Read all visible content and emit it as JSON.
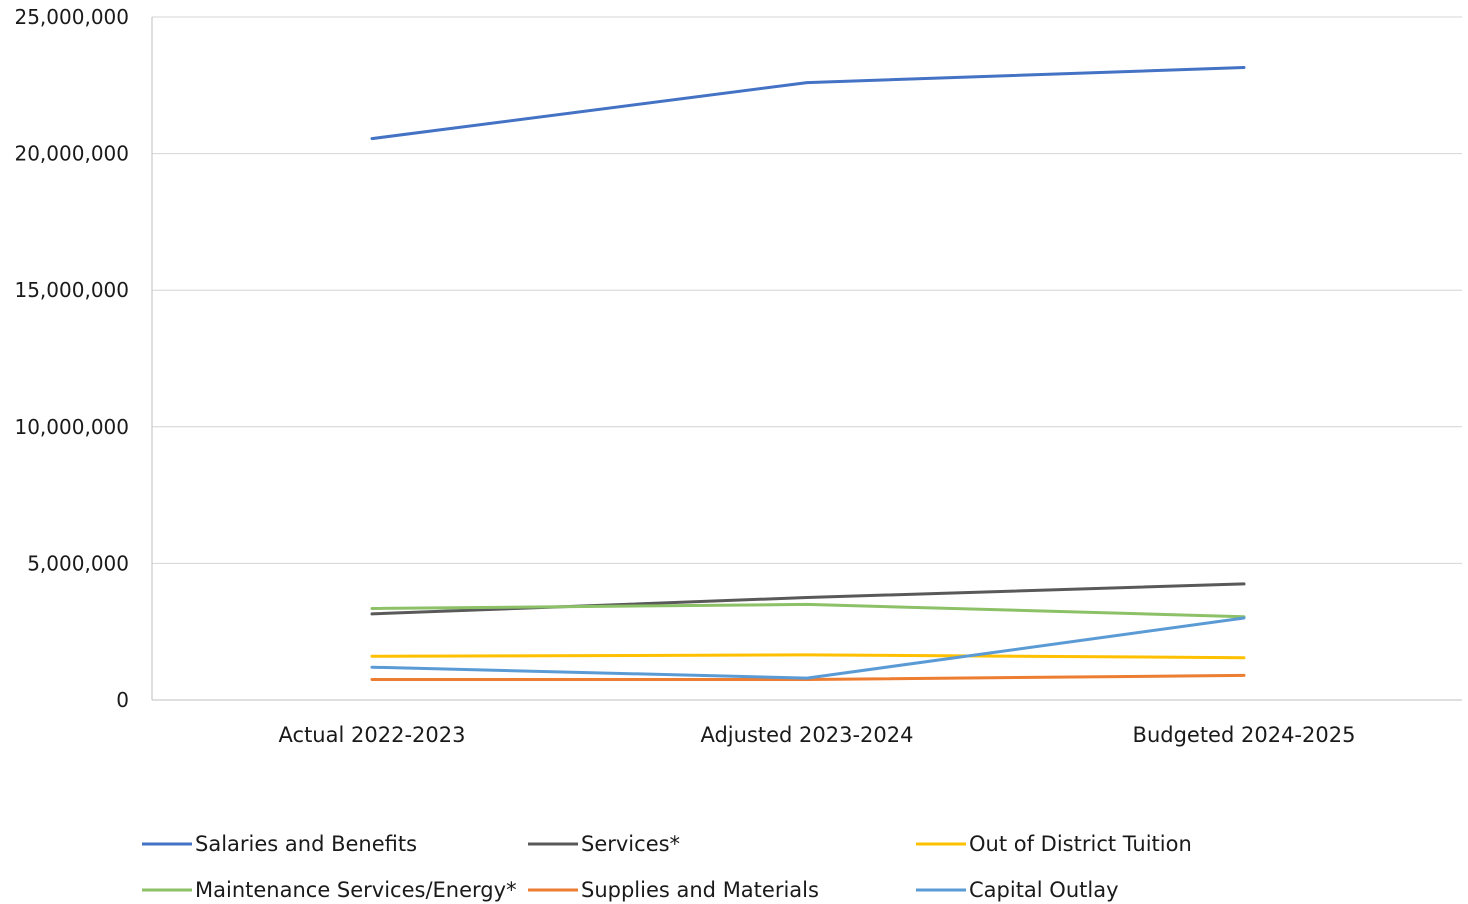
{
  "chart_data": {
    "type": "line",
    "title": "",
    "xlabel": "",
    "ylabel": "",
    "categories": [
      "Actual 2022-2023",
      "Adjusted 2023-2024",
      "Budgeted 2024-2025"
    ],
    "ylim": [
      0,
      25000000
    ],
    "yticks": [
      0,
      5000000,
      10000000,
      15000000,
      20000000,
      25000000
    ],
    "ytick_labels": [
      "0",
      "5,000,000",
      "10,000,000",
      "15,000,000",
      "20,000,000",
      "25,000,000"
    ],
    "grid": true,
    "legend_position": "bottom",
    "series": [
      {
        "name": "Salaries and Benefits",
        "color": "#4472C4",
        "values": [
          20550000,
          22600000,
          23150000
        ]
      },
      {
        "name": "Services*",
        "color": "#595959",
        "values": [
          3150000,
          3750000,
          4250000
        ]
      },
      {
        "name": "Out of District Tuition",
        "color": "#FFC000",
        "values": [
          1600000,
          1650000,
          1550000
        ]
      },
      {
        "name": "Maintenance Services/Energy*",
        "color": "#8CC168",
        "values": [
          3350000,
          3500000,
          3050000
        ]
      },
      {
        "name": "Supplies and Materials",
        "color": "#ED7D31",
        "values": [
          750000,
          750000,
          900000
        ]
      },
      {
        "name": "Capital Outlay",
        "color": "#5B9BD5",
        "values": [
          1200000,
          800000,
          3000000
        ]
      }
    ]
  }
}
